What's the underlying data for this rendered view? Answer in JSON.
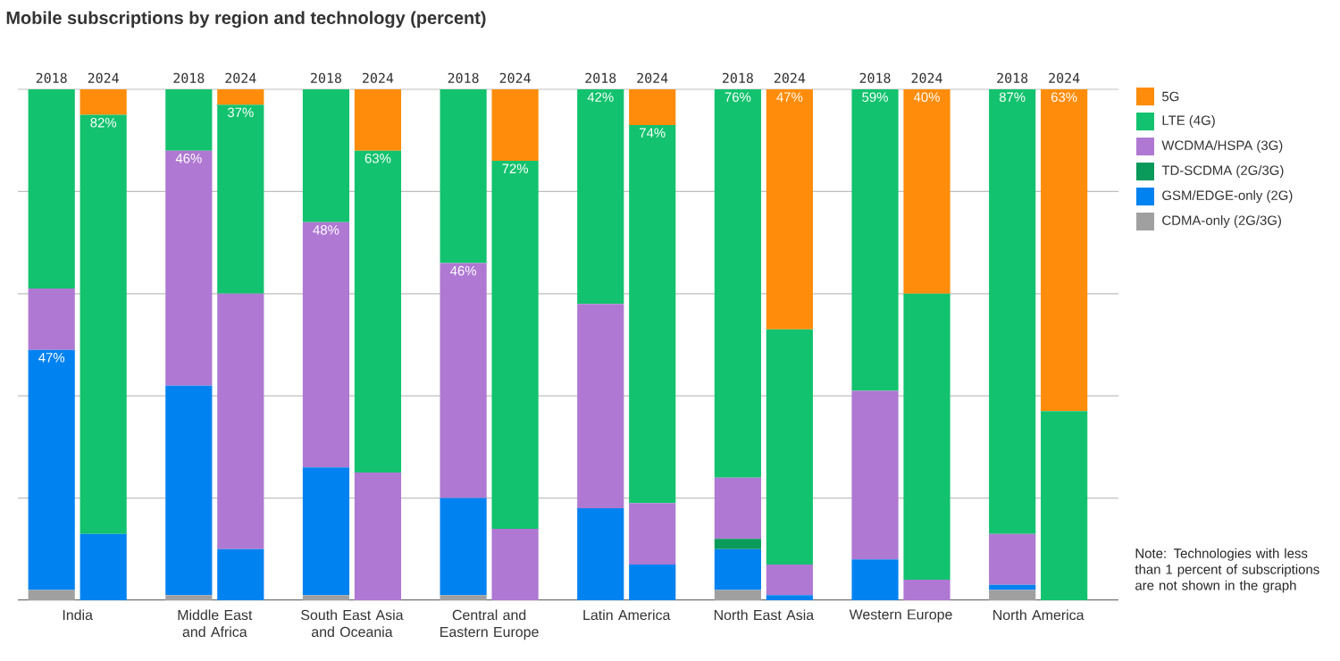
{
  "chart_data": {
    "type": "bar",
    "stacked": true,
    "title": "Mobile subscriptions by region and technology (percent)",
    "categories": [
      "2018",
      "2024",
      "2018",
      "2024",
      "2018",
      "2024",
      "2018",
      "2024",
      "2018",
      "2024",
      "2018",
      "2024",
      "2018",
      "2024",
      "2018",
      "2024"
    ],
    "series": [
      {
        "name": "CDMA-only (2G/3G)",
        "color": "#a0a0a0",
        "values": [
          2,
          0,
          1,
          0,
          1,
          0,
          1,
          0,
          0,
          0,
          2,
          0,
          0,
          0,
          2,
          0
        ]
      },
      {
        "name": "GSM/EDGE-only (2G)",
        "color": "#0082f0",
        "values": [
          47,
          13,
          41,
          10,
          25,
          0,
          19,
          0,
          18,
          7,
          8,
          1,
          8,
          0,
          1,
          0
        ],
        "value_labels": [
          "47%",
          null,
          null,
          null,
          null,
          null,
          null,
          null,
          null,
          null,
          null,
          null,
          null,
          null,
          null,
          null
        ]
      },
      {
        "name": "TD-SCDMA (2G/3G)",
        "color": "#0a9a5a",
        "values": [
          0,
          0,
          0,
          0,
          0,
          0,
          0,
          0,
          0,
          0,
          2,
          0,
          0,
          0,
          0,
          0
        ]
      },
      {
        "name": "WCDMA/HSPA (3G)",
        "color": "#af78d2",
        "values": [
          12,
          0,
          46,
          50,
          48,
          25,
          46,
          14,
          40,
          12,
          12,
          6,
          33,
          4,
          10,
          0
        ],
        "value_labels": [
          null,
          null,
          "46%",
          null,
          "48%",
          null,
          "46%",
          null,
          null,
          null,
          null,
          null,
          null,
          null,
          null,
          null
        ]
      },
      {
        "name": "LTE (4G)",
        "color": "#13c26e",
        "values": [
          39,
          82,
          12,
          37,
          26,
          63,
          34,
          72,
          42,
          74,
          76,
          46,
          59,
          56,
          87,
          37
        ],
        "value_labels": [
          null,
          "82%",
          null,
          "37%",
          null,
          "63%",
          null,
          "72%",
          "42%",
          "74%",
          "76%",
          null,
          "59%",
          null,
          "87%",
          null
        ]
      },
      {
        "name": "5G",
        "color": "#ff8c0a",
        "values": [
          0,
          5,
          0,
          3,
          0,
          12,
          0,
          14,
          0,
          7,
          0,
          47,
          0,
          40,
          0,
          63
        ],
        "value_labels": [
          null,
          null,
          null,
          null,
          null,
          null,
          null,
          null,
          null,
          null,
          null,
          "47%",
          null,
          "40%",
          null,
          "63%"
        ]
      }
    ],
    "ylim": [
      0,
      100
    ],
    "yticks": [
      {
        "value": 0,
        "label": null
      },
      {
        "value": 20,
        "label": null
      },
      {
        "value": 40,
        "label": null
      },
      {
        "value": 60,
        "label": null
      },
      {
        "value": 80,
        "label": null
      },
      {
        "value": 100,
        "label": null
      }
    ],
    "grid": "y",
    "tick_labels": "x",
    "legend": "top right",
    "annotations": [
      "India",
      "Middle East and Africa",
      "South East Asia and Oceania",
      "Central and Eastern Europe",
      "Latin America",
      "North East Asia",
      "Western Europe",
      "North America",
      "Note: Technologies with less than 1 percent of subscriptions are not shown in the graph"
    ]
  }
}
